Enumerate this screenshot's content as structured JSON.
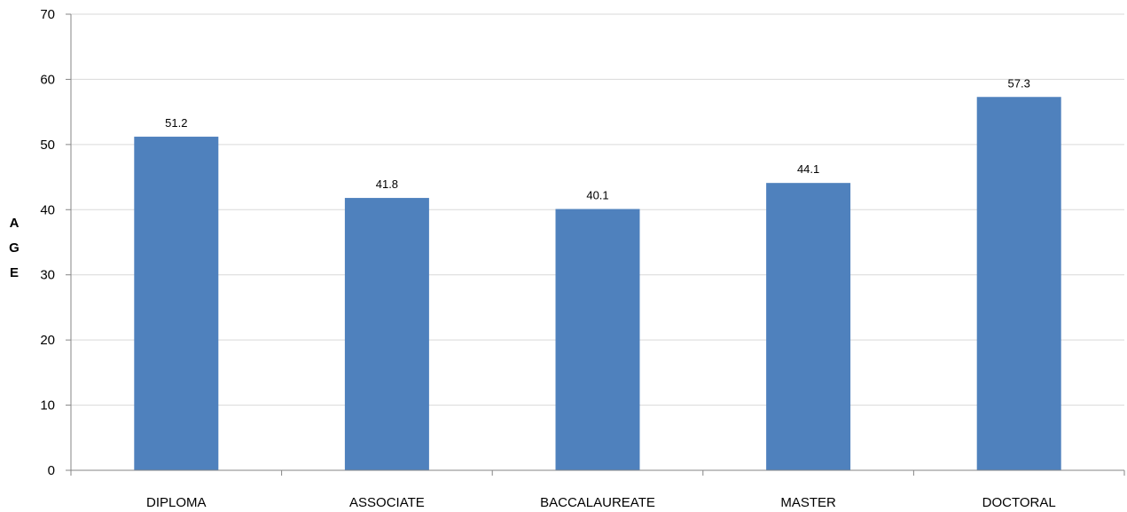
{
  "chart_data": {
    "type": "bar",
    "categories": [
      "DIPLOMA",
      "ASSOCIATE",
      "BACCALAUREATE",
      "MASTER",
      "DOCTORAL"
    ],
    "values": [
      51.2,
      41.8,
      40.1,
      44.1,
      57.3
    ],
    "value_labels": [
      "51.2",
      "41.8",
      "40.1",
      "44.1",
      "57.3"
    ],
    "title": "",
    "xlabel": "",
    "ylabel": "AGE",
    "ylabel_chars": [
      "A",
      "G",
      "E"
    ],
    "ylim": [
      0,
      70
    ],
    "yticks": [
      0,
      10,
      20,
      30,
      40,
      50,
      60,
      70
    ],
    "ytick_labels": [
      "0",
      "10",
      "20",
      "30",
      "40",
      "50",
      "60",
      "70"
    ],
    "grid": true,
    "legend": "none",
    "colors": {
      "bar": "#4f81bd",
      "grid": "#d9d9d9",
      "axis": "#868686"
    }
  }
}
